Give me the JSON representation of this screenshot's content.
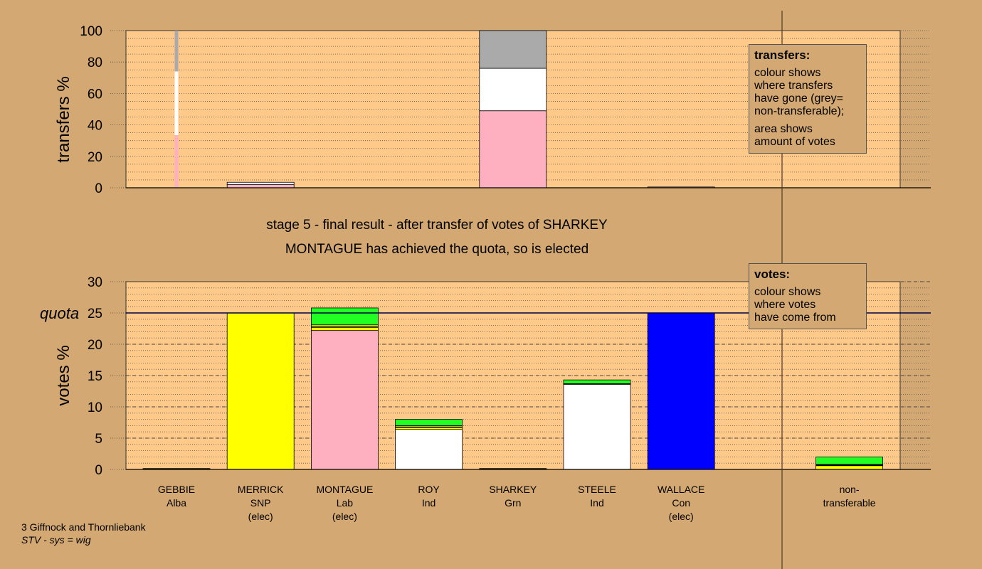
{
  "title_line1": "stage 5 - final result - after transfer of votes of SHARKEY",
  "title_line2": "MONTAGUE has achieved the quota, so is elected",
  "footer": {
    "ward": "3 Giffnock and Thornliebank",
    "system": "STV - sys = wig"
  },
  "legend_transfers": {
    "title": "transfers:",
    "p1": "colour shows\nwhere transfers\nhave gone (grey=\nnon-transferable);",
    "p2": "area shows\namount of votes"
  },
  "legend_votes": {
    "title": "votes:",
    "p1": "colour shows\nwhere votes\nhave come from"
  },
  "colors": {
    "background": "#d4a872",
    "plot_bg": "#ffc98a",
    "Alba": "#000000",
    "SNP": "#ffff00",
    "Lab": "#ffb0c0",
    "Ind": "#ffffff",
    "Grn": "#22ff22",
    "Con": "#0000ff",
    "nontransferable": "#aaaaaa"
  },
  "candidates": [
    {
      "name": "GEBBIE",
      "party": "Alba",
      "status": ""
    },
    {
      "name": "MERRICK",
      "party": "SNP",
      "status": "(elec)"
    },
    {
      "name": "MONTAGUE",
      "party": "Lab",
      "status": "(elec)"
    },
    {
      "name": "ROY",
      "party": "Ind",
      "status": ""
    },
    {
      "name": "SHARKEY",
      "party": "Grn",
      "status": ""
    },
    {
      "name": "STEELE",
      "party": "Ind",
      "status": ""
    },
    {
      "name": "WALLACE",
      "party": "Con",
      "status": "(elec)"
    },
    {
      "name": "",
      "party": "",
      "status": ""
    },
    {
      "name": "non-",
      "party": "transferable",
      "status": ""
    }
  ],
  "chart_data": [
    {
      "type": "bar",
      "ylabel": "transfers %",
      "ylim": [
        0,
        100
      ],
      "yticks": [
        0,
        20,
        40,
        60,
        80,
        100
      ],
      "grid": "dotted",
      "bars": [
        {
          "slot": 0,
          "thin": true,
          "segments": [
            {
              "color": "Lab",
              "value": 33.5
            },
            {
              "color": "Ind",
              "value": 40.5
            },
            {
              "color": "nontransferable",
              "value": 26
            }
          ]
        },
        {
          "slot": 1,
          "thin": false,
          "segments": [
            {
              "color": "Lab",
              "value": 2
            },
            {
              "color": "Ind",
              "value": 1.5
            }
          ]
        },
        {
          "slot": 4,
          "thin": false,
          "segments": [
            {
              "color": "Lab",
              "value": 49
            },
            {
              "color": "Ind",
              "value": 27
            },
            {
              "color": "nontransferable",
              "value": 24
            }
          ]
        },
        {
          "slot": 6,
          "thin": false,
          "segments": [
            {
              "color": "Ind",
              "value": 0.5
            }
          ]
        }
      ]
    },
    {
      "type": "bar",
      "ylabel": "votes %",
      "ylim": [
        0,
        30
      ],
      "yticks": [
        0,
        5,
        10,
        15,
        20,
        25,
        30
      ],
      "quota": 25,
      "quota_label": "quota",
      "grid": "dashed",
      "bars": [
        {
          "slot": 0,
          "segments": [
            {
              "color": "Alba",
              "value": 0.15
            }
          ]
        },
        {
          "slot": 1,
          "segments": [
            {
              "color": "SNP",
              "value": 25
            }
          ]
        },
        {
          "slot": 2,
          "segments": [
            {
              "color": "Lab",
              "value": 22.2
            },
            {
              "color": "SNP",
              "value": 0.5
            },
            {
              "color": "Alba",
              "value": 0.1
            },
            {
              "color": "SNP",
              "value": 0.3
            },
            {
              "color": "Grn",
              "value": 2.7
            }
          ]
        },
        {
          "slot": 3,
          "segments": [
            {
              "color": "Ind",
              "value": 6.4
            },
            {
              "color": "SNP",
              "value": 0.3
            },
            {
              "color": "Alba",
              "value": 0.1
            },
            {
              "color": "SNP",
              "value": 0.2
            },
            {
              "color": "Grn",
              "value": 1.0
            }
          ]
        },
        {
          "slot": 4,
          "segments": [
            {
              "color": "Alba",
              "value": 0.15
            }
          ]
        },
        {
          "slot": 5,
          "segments": [
            {
              "color": "Ind",
              "value": 13.6
            },
            {
              "color": "Alba",
              "value": 0.1
            },
            {
              "color": "Grn",
              "value": 0.6
            }
          ]
        },
        {
          "slot": 6,
          "segments": [
            {
              "color": "Con",
              "value": 25
            }
          ]
        },
        {
          "slot": 8,
          "segments": [
            {
              "color": "SNP",
              "value": 0.6
            },
            {
              "color": "Alba",
              "value": 0.1
            },
            {
              "color": "SNP",
              "value": 0.1
            },
            {
              "color": "Grn",
              "value": 1.2
            }
          ]
        }
      ]
    }
  ]
}
